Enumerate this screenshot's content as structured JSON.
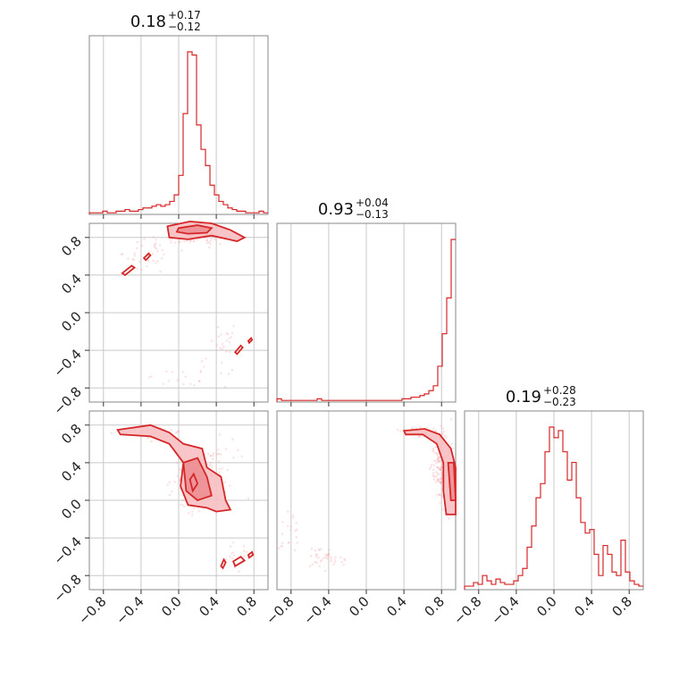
{
  "chart_data": {
    "type": "corner",
    "tick_labels": [
      "−0.8",
      "−0.4",
      "0.0",
      "0.4",
      "0.8"
    ],
    "tick_values": [
      -0.8,
      -0.4,
      0.0,
      0.4,
      0.8
    ],
    "range": [
      -0.95,
      0.95
    ],
    "color": "#d62728",
    "grid": true,
    "parameters": [
      {
        "median": 0.18,
        "plus": 0.17,
        "minus": 0.12,
        "title_main": "0.18",
        "title_plus": "+0.17",
        "title_minus": "−0.12"
      },
      {
        "median": 0.93,
        "plus": 0.04,
        "minus": 0.13,
        "title_main": "0.93",
        "title_plus": "+0.04",
        "title_minus": "−0.13"
      },
      {
        "median": 0.19,
        "plus": 0.28,
        "minus": 0.23,
        "title_main": "0.19",
        "title_plus": "+0.28",
        "title_minus": "−0.23"
      }
    ],
    "histograms": [
      {
        "bin_start": -0.95,
        "bin_width": 0.0475,
        "counts": [
          1,
          1,
          1,
          2,
          1,
          1,
          2,
          2,
          3,
          2,
          2,
          3,
          4,
          4,
          5,
          6,
          5,
          6,
          8,
          12,
          24,
          62,
          100,
          98,
          55,
          40,
          30,
          18,
          12,
          8,
          6,
          4,
          3,
          2,
          2,
          1,
          1,
          1,
          2,
          1
        ]
      },
      {
        "bin_start": -0.95,
        "bin_width": 0.0475,
        "counts": [
          2,
          1,
          1,
          1,
          1,
          1,
          1,
          1,
          1,
          2,
          1,
          1,
          1,
          1,
          1,
          1,
          1,
          1,
          1,
          1,
          1,
          1,
          1,
          1,
          1,
          1,
          1,
          1,
          2,
          2,
          3,
          3,
          4,
          5,
          7,
          10,
          22,
          42,
          64,
          100
        ]
      },
      {
        "bin_start": -0.95,
        "bin_width": 0.0475,
        "counts": [
          2,
          2,
          4,
          3,
          8,
          5,
          3,
          6,
          4,
          3,
          3,
          5,
          8,
          12,
          24,
          36,
          52,
          60,
          78,
          92,
          86,
          90,
          78,
          62,
          72,
          52,
          38,
          32,
          34,
          20,
          8,
          25,
          20,
          10,
          8,
          28,
          10,
          5,
          3,
          2
        ]
      }
    ]
  }
}
